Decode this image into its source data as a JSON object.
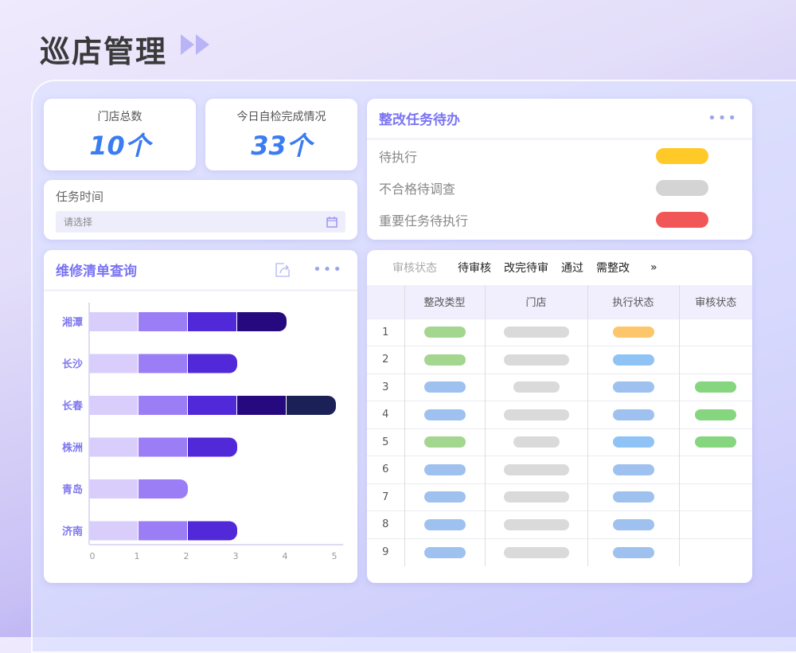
{
  "page": {
    "title": "巡店管理"
  },
  "stats": [
    {
      "label": "门店总数",
      "value": "10个"
    },
    {
      "label": "今日自检完成情况",
      "value": "33个"
    }
  ],
  "task_time": {
    "label": "任务时间",
    "placeholder": "请选择"
  },
  "todo": {
    "title": "整改任务待办",
    "items": [
      {
        "label": "待执行",
        "color": "#ffc928"
      },
      {
        "label": "不合格待调查",
        "color": "#d4d4d4"
      },
      {
        "label": "重要任务待执行",
        "color": "#f25757"
      }
    ]
  },
  "repair": {
    "title": "维修清单查询"
  },
  "chart_data": {
    "type": "bar",
    "orientation": "horizontal",
    "stacked": true,
    "categories": [
      "湘潭",
      "长沙",
      "长春",
      "株洲",
      "青岛",
      "济南"
    ],
    "series": [
      {
        "values": [
          1,
          1,
          1,
          1,
          1,
          1
        ],
        "color": "#d9cefb"
      },
      {
        "values": [
          1,
          1,
          1,
          1,
          1,
          1
        ],
        "color": "#9b7df5"
      },
      {
        "values": [
          1,
          1,
          1,
          1,
          0,
          1
        ],
        "color": "#5229d8"
      },
      {
        "values": [
          1,
          0,
          1,
          0,
          0,
          0
        ],
        "color": "#26087f"
      },
      {
        "values": [
          0,
          0,
          1,
          0,
          0,
          0
        ],
        "color": "#1b2156"
      }
    ],
    "xticks": [
      "0",
      "1",
      "2",
      "3",
      "4",
      "5"
    ],
    "xlim": [
      0,
      5.15
    ],
    "grid": false
  },
  "review": {
    "filters": {
      "label": "审核状态",
      "options": [
        "待审核",
        "改完待审",
        "通过",
        "需整改"
      ],
      "more": "»"
    },
    "columns": [
      "",
      "整改类型",
      "门店",
      "执行状态",
      "审核状态"
    ],
    "colors": {
      "green": "#a3d68f",
      "blue": "#9fc1ef",
      "lightblue": "#8fc3f5",
      "orange": "#fec66a",
      "gray": "#dadada",
      "brightgreen": "#85d67f"
    },
    "rows": [
      {
        "n": "1",
        "type": "green",
        "store": "long",
        "exec": "orange",
        "review": ""
      },
      {
        "n": "2",
        "type": "green",
        "store": "long",
        "exec": "lightblue",
        "review": ""
      },
      {
        "n": "3",
        "type": "blue",
        "store": "short",
        "exec": "blue",
        "review": "brightgreen"
      },
      {
        "n": "4",
        "type": "blue",
        "store": "long",
        "exec": "blue",
        "review": "brightgreen"
      },
      {
        "n": "5",
        "type": "green",
        "store": "short",
        "exec": "lightblue",
        "review": "brightgreen"
      },
      {
        "n": "6",
        "type": "blue",
        "store": "long",
        "exec": "blue",
        "review": ""
      },
      {
        "n": "7",
        "type": "blue",
        "store": "long",
        "exec": "blue",
        "review": ""
      },
      {
        "n": "8",
        "type": "blue",
        "store": "long",
        "exec": "blue",
        "review": ""
      },
      {
        "n": "9",
        "type": "blue",
        "store": "long",
        "exec": "blue",
        "review": ""
      }
    ]
  }
}
